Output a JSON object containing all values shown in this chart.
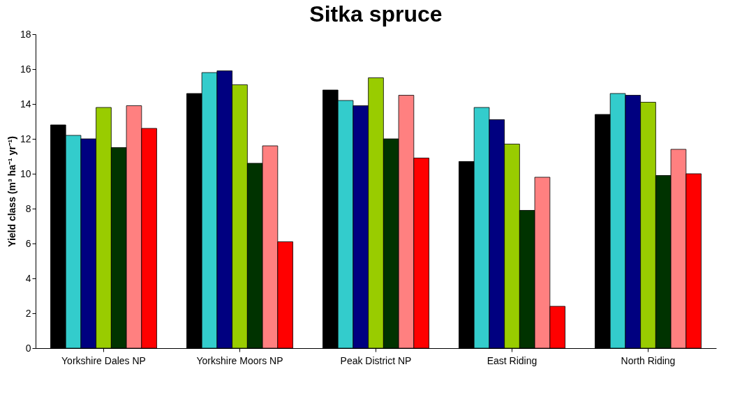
{
  "chart_data": {
    "type": "bar",
    "title": "Sitka spruce",
    "ylabel": "Yield class (m³ ha⁻¹ yr⁻¹)",
    "categories": [
      "Yorkshire Dales NP",
      "Yorkshire Moors NP",
      "Peak District NP",
      "East Riding",
      "North Riding"
    ],
    "series": [
      {
        "color": "#000000",
        "values": [
          12.8,
          14.6,
          14.8,
          10.7,
          13.4
        ]
      },
      {
        "color": "#33cccc",
        "values": [
          12.2,
          15.8,
          14.2,
          13.8,
          14.6
        ]
      },
      {
        "color": "#000080",
        "values": [
          12.0,
          15.9,
          13.9,
          13.1,
          14.5
        ]
      },
      {
        "color": "#99cc00",
        "values": [
          13.8,
          15.1,
          15.5,
          11.7,
          14.1
        ]
      },
      {
        "color": "#003300",
        "values": [
          11.5,
          10.6,
          12.0,
          7.9,
          9.9
        ]
      },
      {
        "color": "#ff8080",
        "values": [
          13.9,
          11.6,
          14.5,
          9.8,
          11.4
        ]
      },
      {
        "color": "#ff0000",
        "values": [
          12.6,
          6.1,
          10.9,
          2.4,
          10.0
        ]
      }
    ],
    "ylim": [
      0,
      18
    ],
    "yticks": [
      0,
      2,
      4,
      6,
      8,
      10,
      12,
      14,
      16,
      18
    ],
    "grid": false,
    "legend": false
  }
}
